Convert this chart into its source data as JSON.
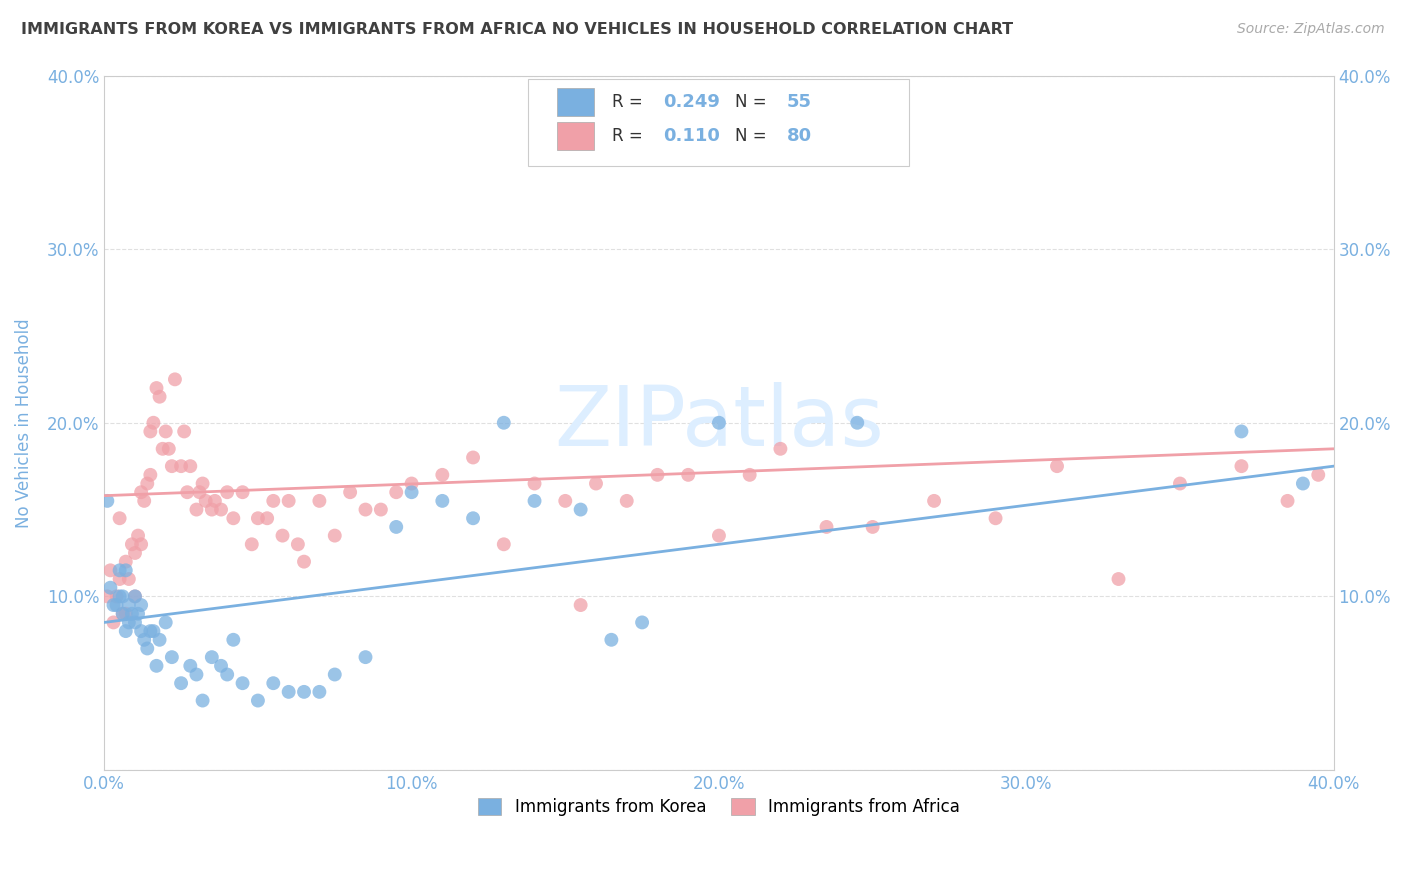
{
  "title": "IMMIGRANTS FROM KOREA VS IMMIGRANTS FROM AFRICA NO VEHICLES IN HOUSEHOLD CORRELATION CHART",
  "source": "Source: ZipAtlas.com",
  "ylabel": "No Vehicles in Household",
  "xlim": [
    0.0,
    0.4
  ],
  "ylim": [
    0.0,
    0.4
  ],
  "xticks": [
    0.0,
    0.1,
    0.2,
    0.3,
    0.4
  ],
  "yticks": [
    0.0,
    0.1,
    0.2,
    0.3,
    0.4
  ],
  "xtick_labels": [
    "0.0%",
    "10.0%",
    "20.0%",
    "30.0%",
    "40.0%"
  ],
  "ytick_labels": [
    "",
    "10.0%",
    "20.0%",
    "30.0%",
    "40.0%"
  ],
  "korea_color": "#7ab0e0",
  "africa_color": "#f0a0a8",
  "korea_R": 0.249,
  "korea_N": 55,
  "africa_R": 0.11,
  "africa_N": 80,
  "legend_label_korea": "Immigrants from Korea",
  "legend_label_africa": "Immigrants from Africa",
  "korea_x": [
    0.001,
    0.002,
    0.003,
    0.004,
    0.005,
    0.005,
    0.006,
    0.006,
    0.007,
    0.007,
    0.008,
    0.008,
    0.009,
    0.01,
    0.01,
    0.011,
    0.012,
    0.012,
    0.013,
    0.014,
    0.015,
    0.016,
    0.017,
    0.018,
    0.02,
    0.022,
    0.025,
    0.028,
    0.03,
    0.032,
    0.035,
    0.038,
    0.04,
    0.042,
    0.045,
    0.05,
    0.055,
    0.06,
    0.065,
    0.07,
    0.075,
    0.085,
    0.095,
    0.1,
    0.11,
    0.12,
    0.13,
    0.14,
    0.155,
    0.165,
    0.175,
    0.2,
    0.245,
    0.37,
    0.39
  ],
  "korea_y": [
    0.155,
    0.105,
    0.095,
    0.095,
    0.115,
    0.1,
    0.09,
    0.1,
    0.08,
    0.115,
    0.085,
    0.095,
    0.09,
    0.1,
    0.085,
    0.09,
    0.08,
    0.095,
    0.075,
    0.07,
    0.08,
    0.08,
    0.06,
    0.075,
    0.085,
    0.065,
    0.05,
    0.06,
    0.055,
    0.04,
    0.065,
    0.06,
    0.055,
    0.075,
    0.05,
    0.04,
    0.05,
    0.045,
    0.045,
    0.045,
    0.055,
    0.065,
    0.14,
    0.16,
    0.155,
    0.145,
    0.2,
    0.155,
    0.15,
    0.075,
    0.085,
    0.2,
    0.2,
    0.195,
    0.165
  ],
  "africa_x": [
    0.001,
    0.002,
    0.003,
    0.004,
    0.005,
    0.005,
    0.006,
    0.007,
    0.007,
    0.008,
    0.009,
    0.01,
    0.01,
    0.011,
    0.012,
    0.012,
    0.013,
    0.014,
    0.015,
    0.015,
    0.016,
    0.017,
    0.018,
    0.019,
    0.02,
    0.021,
    0.022,
    0.023,
    0.025,
    0.026,
    0.027,
    0.028,
    0.03,
    0.031,
    0.032,
    0.033,
    0.035,
    0.036,
    0.038,
    0.04,
    0.042,
    0.045,
    0.048,
    0.05,
    0.053,
    0.055,
    0.058,
    0.06,
    0.063,
    0.065,
    0.07,
    0.075,
    0.08,
    0.085,
    0.09,
    0.095,
    0.1,
    0.11,
    0.12,
    0.13,
    0.14,
    0.15,
    0.155,
    0.16,
    0.17,
    0.18,
    0.19,
    0.2,
    0.21,
    0.22,
    0.235,
    0.25,
    0.27,
    0.29,
    0.31,
    0.33,
    0.35,
    0.37,
    0.385,
    0.395
  ],
  "africa_y": [
    0.1,
    0.115,
    0.085,
    0.1,
    0.11,
    0.145,
    0.09,
    0.09,
    0.12,
    0.11,
    0.13,
    0.1,
    0.125,
    0.135,
    0.13,
    0.16,
    0.155,
    0.165,
    0.17,
    0.195,
    0.2,
    0.22,
    0.215,
    0.185,
    0.195,
    0.185,
    0.175,
    0.225,
    0.175,
    0.195,
    0.16,
    0.175,
    0.15,
    0.16,
    0.165,
    0.155,
    0.15,
    0.155,
    0.15,
    0.16,
    0.145,
    0.16,
    0.13,
    0.145,
    0.145,
    0.155,
    0.135,
    0.155,
    0.13,
    0.12,
    0.155,
    0.135,
    0.16,
    0.15,
    0.15,
    0.16,
    0.165,
    0.17,
    0.18,
    0.13,
    0.165,
    0.155,
    0.095,
    0.165,
    0.155,
    0.17,
    0.17,
    0.135,
    0.17,
    0.185,
    0.14,
    0.14,
    0.155,
    0.145,
    0.175,
    0.11,
    0.165,
    0.175,
    0.155,
    0.17
  ],
  "background_color": "#ffffff",
  "grid_color": "#e0e0e0",
  "title_color": "#404040",
  "source_color": "#aaaaaa",
  "axis_label_color": "#7ab0e0",
  "tick_color": "#7ab0e0",
  "watermark_text": "ZIPatlas",
  "watermark_color": "#ddeeff",
  "korea_line_start_y": 0.085,
  "korea_line_end_y": 0.175,
  "africa_line_start_y": 0.158,
  "africa_line_end_y": 0.185
}
